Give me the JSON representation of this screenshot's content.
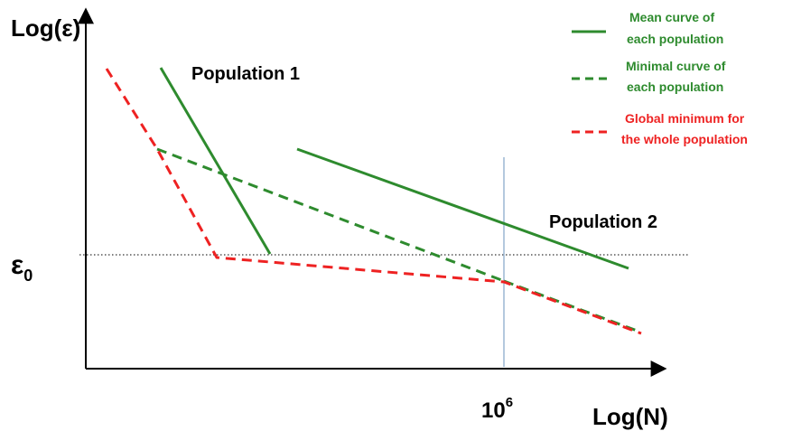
{
  "axes": {
    "y_title": "Log(ε)",
    "x_title": "Log(N)",
    "x_tick_base": "10",
    "x_tick_exponent": "6",
    "threshold_label": "ε",
    "threshold_subscript": "0"
  },
  "annotations": {
    "population_1": "Population 1",
    "population_2": "Population 2"
  },
  "legend": [
    {
      "line1": "Mean curve of",
      "line2": "each population",
      "style": "solid",
      "color": "#2e8b2e"
    },
    {
      "line1": "Minimal curve of",
      "line2": "each population",
      "style": "dashed",
      "color": "#2e8b2e"
    },
    {
      "line1": "Global minimum for",
      "line2": "the whole population",
      "style": "dashed",
      "color": "#ee2222"
    }
  ],
  "colors": {
    "mean_curve": "#2e8b2e",
    "minimal_curve": "#2e8b2e",
    "global_minimum": "#ee2222",
    "marker_line": "#9bb7d4",
    "axis": "#000000"
  }
}
